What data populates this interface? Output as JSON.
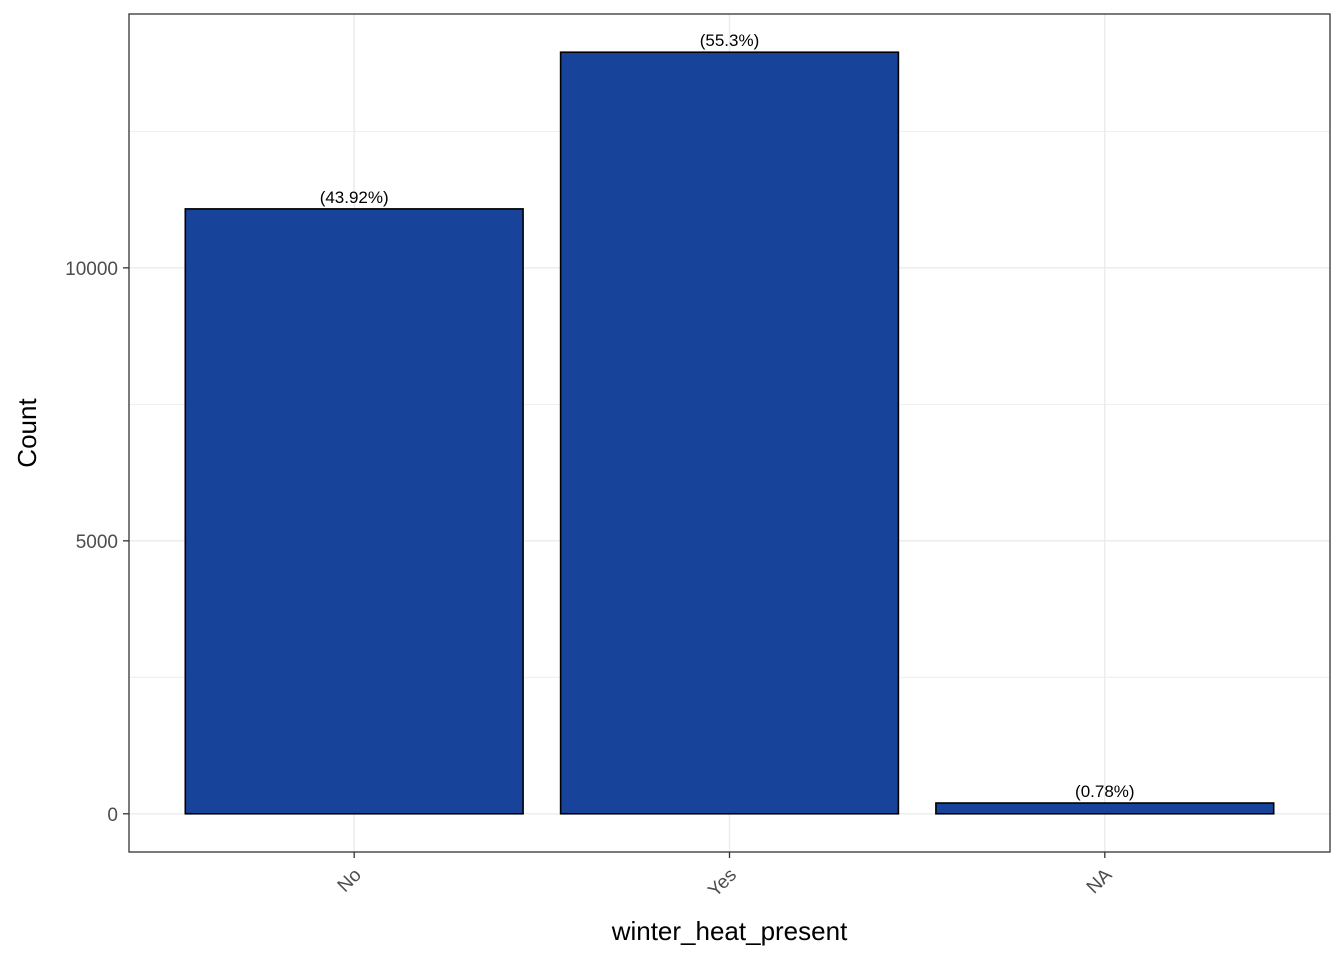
{
  "chart_data": {
    "type": "bar",
    "categories": [
      "No",
      "Yes",
      "NA"
    ],
    "values": [
      11080,
      13950,
      197
    ],
    "labels": [
      "(43.92%)",
      "(55.3%)",
      "(0.78%)"
    ],
    "xlabel": "winter_heat_present",
    "ylabel": "Count",
    "ylim": [
      -700,
      14650
    ],
    "yticks": [
      0,
      5000,
      10000
    ],
    "ytick_labels": [
      "0",
      "5000",
      "10000"
    ],
    "grid": true,
    "legend": "none",
    "bar_color": "#17439a",
    "bar_border_color": "#000000",
    "panel_border_color": "#333333",
    "grid_color": "#ebebeb"
  }
}
